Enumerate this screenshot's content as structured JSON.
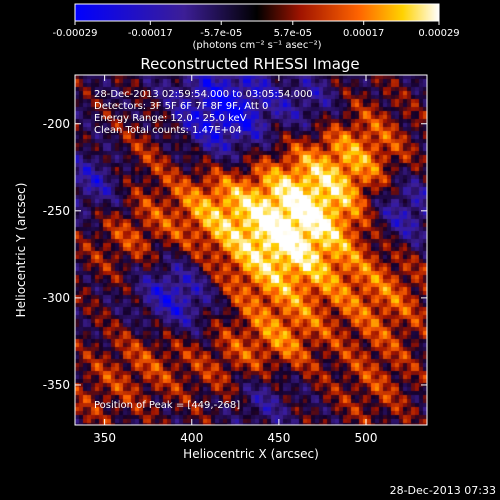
{
  "colorbar": {
    "ticks": [
      "-0.00029",
      "-0.00017",
      "-5.7e-05",
      "5.7e-05",
      "0.00017",
      "0.00029"
    ],
    "tick_values": [
      -0.00029,
      -0.00017,
      -5.7e-05,
      5.7e-05,
      0.00017,
      0.00029
    ],
    "units": "(photons cm⁻² s⁻¹ asec⁻²)",
    "range": [
      -0.00029,
      0.00029
    ]
  },
  "chart_data": {
    "type": "heatmap",
    "title": "Reconstructed RHESSI Image",
    "xlabel": "Heliocentric X (arcsec)",
    "ylabel": "Heliocentric Y (arcsec)",
    "xlim": [
      333,
      535
    ],
    "ylim": [
      -373,
      -172
    ],
    "xticks": [
      350,
      400,
      450,
      500
    ],
    "yticks": [
      -200,
      -250,
      -300,
      -350
    ],
    "annotations": [
      "28-Dec-2013 02:59:54.000 to 03:05:54.000",
      "Detectors: 3F 5F 6F 7F 8F 9F, Att 0",
      "Energy Range: 12.0 - 25.0 keV",
      "Clean     Total counts: 1.47E+04"
    ],
    "peak_label": "Position of Peak = [449,-268]",
    "peak": [
      449,
      -268
    ],
    "colors": [
      "#0000ff",
      "#3c1e96",
      "#000000",
      "#a01400",
      "#ff6400",
      "#ffd200",
      "#ffffff"
    ]
  },
  "footer": {
    "timestamp": "28-Dec-2013 07:33"
  }
}
